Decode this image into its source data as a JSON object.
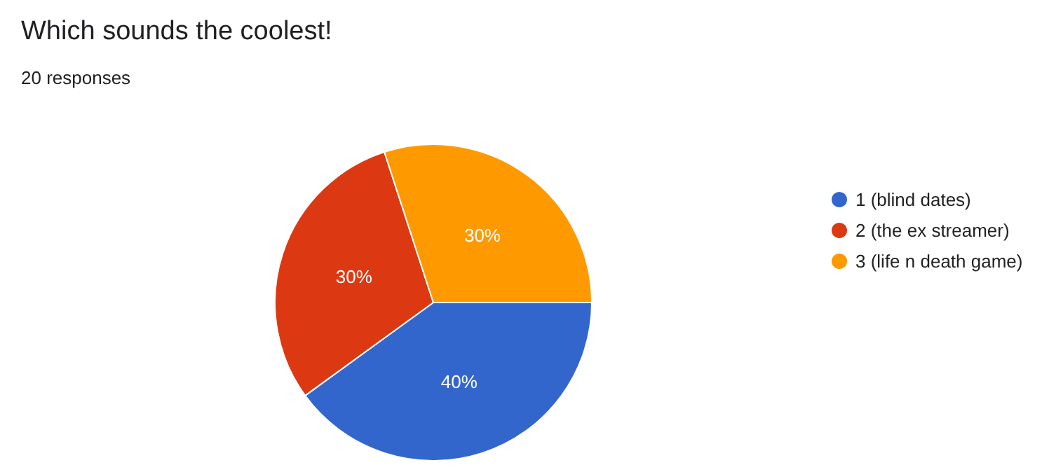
{
  "chart_data": {
    "type": "pie",
    "title": "Which sounds the coolest!",
    "subtitle": "20 responses",
    "categories": [
      "1 (blind dates)",
      "2 (the ex streamer)",
      "3 (life n death game)"
    ],
    "values": [
      40,
      30,
      30
    ],
    "colors": [
      "#3366cc",
      "#dc3912",
      "#ff9900"
    ],
    "value_labels": [
      "40%",
      "30%",
      "30%"
    ],
    "legend": "right"
  }
}
